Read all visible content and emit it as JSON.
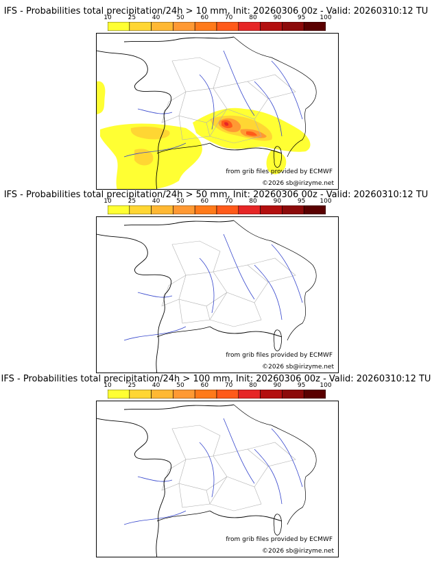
{
  "colorbar": {
    "ticks": [
      "10",
      "25",
      "40",
      "50",
      "60",
      "70",
      "80",
      "90",
      "95",
      "100"
    ],
    "colors": [
      "#ffff33",
      "#ffd633",
      "#ffb833",
      "#ff9933",
      "#ff7a1a",
      "#ff5a1a",
      "#e62626",
      "#b30f0f",
      "#8c0a0a",
      "#5a0000"
    ]
  },
  "panels": [
    {
      "title": "IFS - Probabilities total precipitation/24h > 10 mm, Init: 20260306 00z - Valid: 20260310:12 TU",
      "credit_source": "from grib files provided by ECMWF",
      "credit_copyright": "©2026 sb@irizyme.net",
      "has_precip": true
    },
    {
      "title": "IFS - Probabilities total precipitation/24h > 50 mm, Init: 20260306 00z - Valid: 20260310:12 TU",
      "credit_source": "from grib files provided by ECMWF",
      "credit_copyright": "©2026 sb@irizyme.net",
      "has_precip": false
    },
    {
      "title": "IFS - Probabilities total precipitation/24h > 100 mm, Init: 20260306 00z - Valid: 20260310:12 TU",
      "credit_source": "from grib files provided by ECMWF",
      "credit_copyright": "©2026 sb@irizyme.net",
      "has_precip": false
    }
  ]
}
